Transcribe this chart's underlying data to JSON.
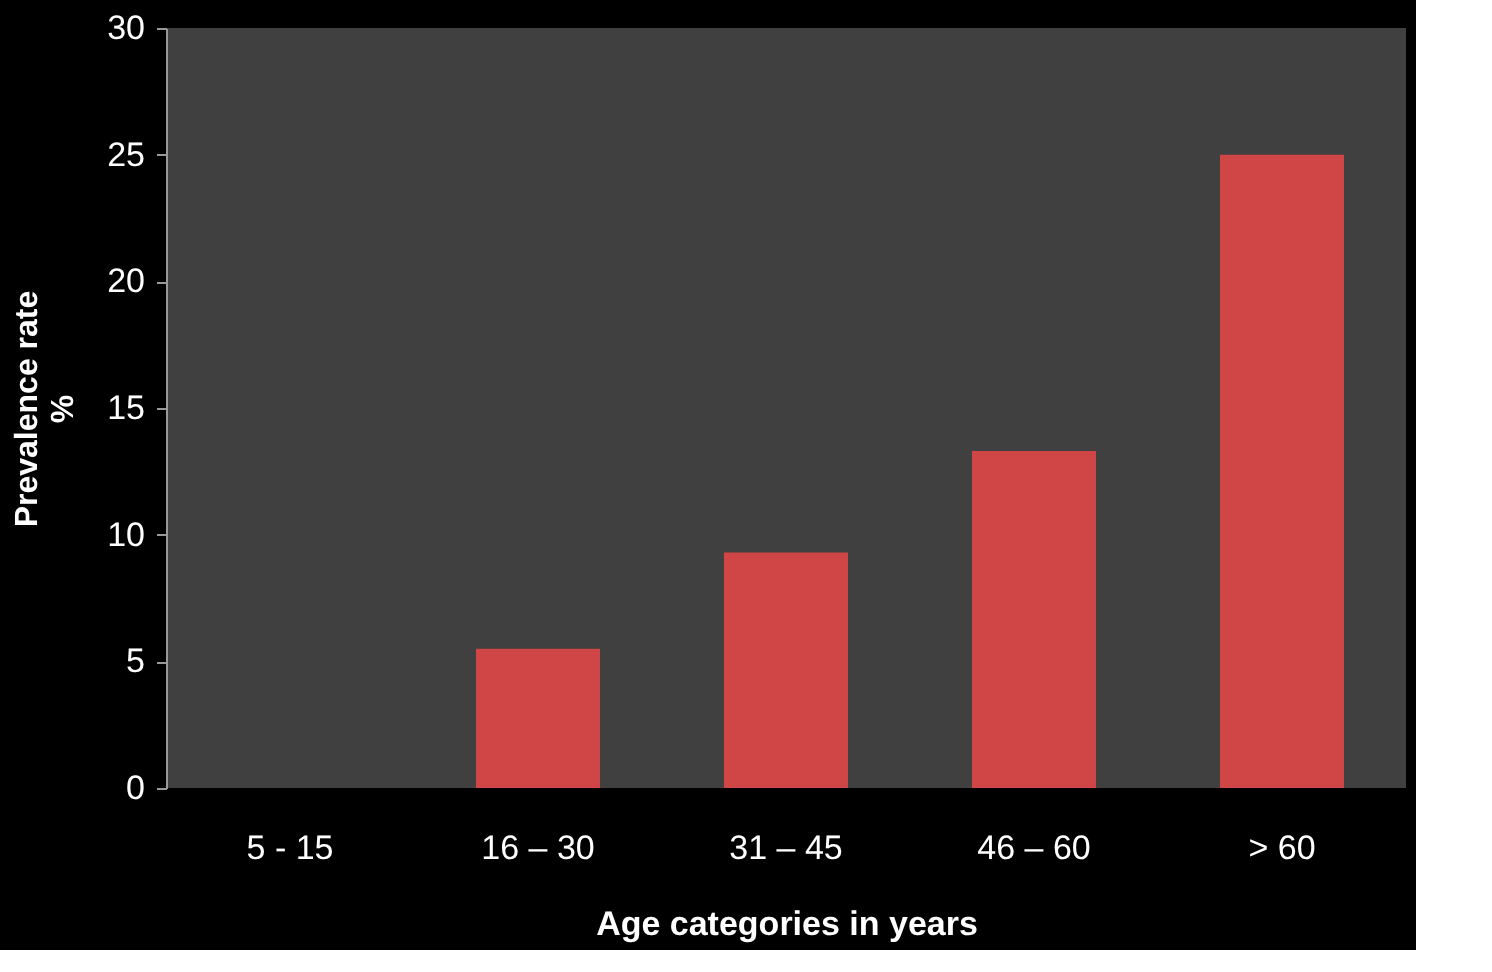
{
  "chart_data": {
    "type": "bar",
    "xlabel": "Age categories  in years",
    "ylabel": "Prevalence rate\n%",
    "categories": [
      "5 - 15",
      "16 – 30",
      "31 – 45",
      "46 – 60",
      "> 60"
    ],
    "values": [
      0,
      5.5,
      9.3,
      13.3,
      25.0
    ],
    "color": "#d04545",
    "ylim": [
      0,
      30
    ],
    "yticks": [
      0,
      5,
      10,
      15,
      20,
      25,
      30
    ],
    "grid": false
  }
}
